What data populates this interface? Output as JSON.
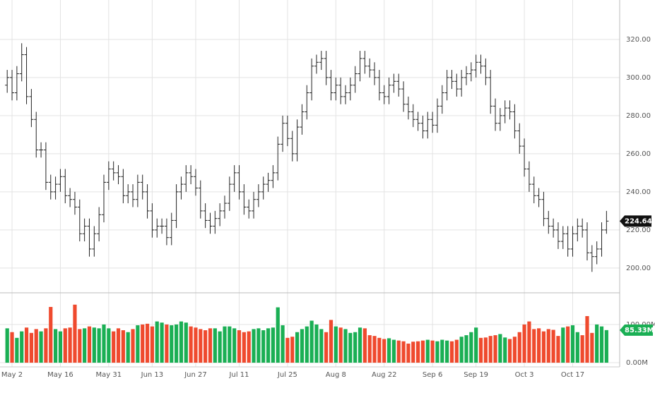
{
  "chart_data": {
    "type": "ohlc",
    "categories": [
      null,
      "May 2",
      null,
      null,
      null,
      null,
      null,
      null,
      null,
      null,
      null,
      "May 16",
      null,
      null,
      null,
      null,
      null,
      null,
      null,
      null,
      null,
      "May 31",
      null,
      null,
      null,
      null,
      null,
      null,
      null,
      null,
      "Jun 13",
      null,
      null,
      null,
      null,
      null,
      null,
      null,
      null,
      "Jun 27",
      null,
      null,
      null,
      null,
      null,
      null,
      null,
      null,
      "Jul 11",
      null,
      null,
      null,
      null,
      null,
      null,
      null,
      null,
      null,
      "Jul 25",
      null,
      null,
      null,
      null,
      null,
      null,
      null,
      null,
      null,
      "Aug 8",
      null,
      null,
      null,
      null,
      null,
      null,
      null,
      null,
      null,
      "Aug 22",
      null,
      null,
      null,
      null,
      null,
      null,
      null,
      null,
      null,
      "Sep 6",
      null,
      null,
      null,
      null,
      null,
      null,
      null,
      null,
      "Sep 19",
      null,
      null,
      null,
      null,
      null,
      null,
      null,
      null,
      null,
      "Oct 3",
      null,
      null,
      null,
      null,
      null,
      null,
      null,
      null,
      null,
      "Oct 17",
      null,
      null,
      null,
      null,
      null,
      null,
      null
    ],
    "open": [
      296,
      300,
      292,
      302,
      312,
      290,
      278,
      262,
      262,
      245,
      240,
      244,
      248,
      238,
      236,
      232,
      218,
      222,
      210,
      218,
      228,
      245,
      252,
      250,
      248,
      238,
      240,
      236,
      245,
      240,
      230,
      220,
      222,
      222,
      216,
      225,
      240,
      244,
      250,
      248,
      242,
      230,
      225,
      222,
      226,
      230,
      234,
      244,
      250,
      240,
      232,
      230,
      236,
      240,
      244,
      246,
      250,
      265,
      276,
      268,
      260,
      274,
      282,
      292,
      306,
      308,
      310,
      300,
      292,
      296,
      290,
      292,
      296,
      302,
      310,
      306,
      304,
      300,
      292,
      290,
      296,
      298,
      294,
      286,
      282,
      278,
      276,
      272,
      278,
      275,
      285,
      292,
      300,
      298,
      294,
      300,
      302,
      304,
      308,
      306,
      300,
      285,
      276,
      280,
      284,
      282,
      272,
      264,
      252,
      244,
      238,
      236,
      226,
      222,
      220,
      214,
      218,
      210,
      218,
      222,
      220,
      208,
      206,
      210,
      220
    ],
    "high": [
      304,
      304,
      306,
      318,
      316,
      294,
      282,
      266,
      266,
      249,
      248,
      252,
      252,
      242,
      240,
      236,
      226,
      226,
      222,
      232,
      249,
      256,
      256,
      254,
      252,
      244,
      244,
      249,
      249,
      244,
      234,
      226,
      226,
      226,
      229,
      244,
      248,
      254,
      254,
      252,
      246,
      234,
      229,
      230,
      234,
      238,
      248,
      254,
      254,
      244,
      236,
      240,
      244,
      248,
      250,
      254,
      269,
      280,
      280,
      272,
      278,
      286,
      296,
      310,
      312,
      314,
      314,
      304,
      300,
      300,
      296,
      300,
      306,
      314,
      314,
      310,
      308,
      304,
      296,
      300,
      302,
      302,
      298,
      290,
      286,
      282,
      280,
      282,
      282,
      289,
      296,
      304,
      304,
      302,
      304,
      306,
      308,
      312,
      312,
      310,
      304,
      289,
      284,
      288,
      288,
      286,
      276,
      268,
      256,
      248,
      242,
      240,
      230,
      226,
      224,
      222,
      222,
      222,
      226,
      226,
      224,
      212,
      214,
      224,
      230
    ],
    "low": [
      292,
      288,
      288,
      298,
      286,
      274,
      258,
      258,
      241,
      236,
      236,
      240,
      234,
      232,
      228,
      214,
      214,
      206,
      206,
      214,
      224,
      241,
      246,
      244,
      234,
      234,
      232,
      232,
      236,
      226,
      216,
      216,
      218,
      212,
      212,
      221,
      236,
      240,
      244,
      238,
      226,
      221,
      218,
      218,
      222,
      226,
      230,
      240,
      236,
      228,
      226,
      226,
      232,
      236,
      240,
      242,
      246,
      261,
      264,
      256,
      256,
      270,
      278,
      288,
      302,
      304,
      296,
      288,
      288,
      286,
      286,
      288,
      292,
      298,
      302,
      300,
      296,
      288,
      286,
      286,
      292,
      290,
      282,
      278,
      274,
      272,
      268,
      268,
      271,
      271,
      281,
      288,
      294,
      290,
      290,
      296,
      298,
      300,
      302,
      296,
      281,
      272,
      272,
      276,
      278,
      268,
      260,
      248,
      240,
      234,
      232,
      222,
      218,
      216,
      210,
      210,
      206,
      206,
      214,
      216,
      204,
      198,
      202,
      206,
      218
    ],
    "close": [
      300,
      292,
      302,
      312,
      290,
      278,
      262,
      262,
      245,
      240,
      244,
      248,
      238,
      236,
      232,
      218,
      222,
      210,
      218,
      228,
      245,
      252,
      250,
      248,
      238,
      240,
      236,
      245,
      240,
      230,
      220,
      222,
      222,
      216,
      225,
      240,
      244,
      250,
      248,
      242,
      230,
      225,
      222,
      226,
      230,
      234,
      244,
      250,
      240,
      232,
      230,
      236,
      240,
      244,
      246,
      250,
      265,
      276,
      268,
      260,
      274,
      282,
      292,
      306,
      308,
      310,
      300,
      292,
      296,
      290,
      292,
      296,
      302,
      310,
      306,
      304,
      300,
      292,
      290,
      296,
      298,
      294,
      286,
      282,
      278,
      276,
      272,
      278,
      275,
      285,
      292,
      300,
      298,
      294,
      300,
      302,
      304,
      308,
      306,
      300,
      285,
      276,
      280,
      284,
      282,
      272,
      264,
      252,
      244,
      238,
      236,
      226,
      222,
      220,
      214,
      218,
      210,
      218,
      222,
      220,
      208,
      206,
      210,
      220,
      224.64
    ],
    "color": "#222222",
    "up_color": "#1aaf54",
    "down_color": "#ef4a2e",
    "grid": true,
    "ylim": [
      187,
      340.7
    ],
    "yticks": [
      {
        "value": 200,
        "label": "200.00"
      },
      {
        "value": 220,
        "label": "220.00"
      },
      {
        "value": 240,
        "label": "240.00"
      },
      {
        "value": 260,
        "label": "260.00"
      },
      {
        "value": 280,
        "label": "280.00"
      },
      {
        "value": 300,
        "label": "300.00"
      },
      {
        "value": 320,
        "label": "320.00"
      }
    ],
    "volume": {
      "values": [
        90,
        80,
        65,
        82,
        92,
        78,
        88,
        82,
        90,
        146,
        88,
        82,
        90,
        92,
        152,
        88,
        90,
        95,
        92,
        90,
        100,
        90,
        82,
        90,
        85,
        80,
        88,
        98,
        100,
        102,
        95,
        108,
        105,
        100,
        98,
        100,
        108,
        105,
        95,
        92,
        88,
        85,
        90,
        90,
        82,
        95,
        95,
        90,
        85,
        80,
        82,
        88,
        90,
        85,
        90,
        92,
        145,
        98,
        65,
        68,
        80,
        88,
        95,
        110,
        100,
        88,
        80,
        112,
        95,
        92,
        88,
        78,
        80,
        92,
        90,
        72,
        70,
        65,
        62,
        64,
        60,
        58,
        56,
        50,
        55,
        56,
        58,
        60,
        58,
        56,
        60,
        58,
        56,
        60,
        68,
        72,
        80,
        92,
        65,
        66,
        70,
        72,
        75,
        66,
        62,
        68,
        80,
        100,
        108,
        88,
        90,
        82,
        88,
        86,
        70,
        92,
        95,
        98,
        80,
        72,
        122,
        78,
        100,
        95,
        85.33
      ],
      "value_labels": {
        "124": "85.33M"
      },
      "ylim": [
        -11,
        183
      ],
      "yticks": [
        {
          "value": 0,
          "label": "0.00M"
        },
        {
          "value": 100,
          "label": "100.00M"
        }
      ]
    }
  }
}
